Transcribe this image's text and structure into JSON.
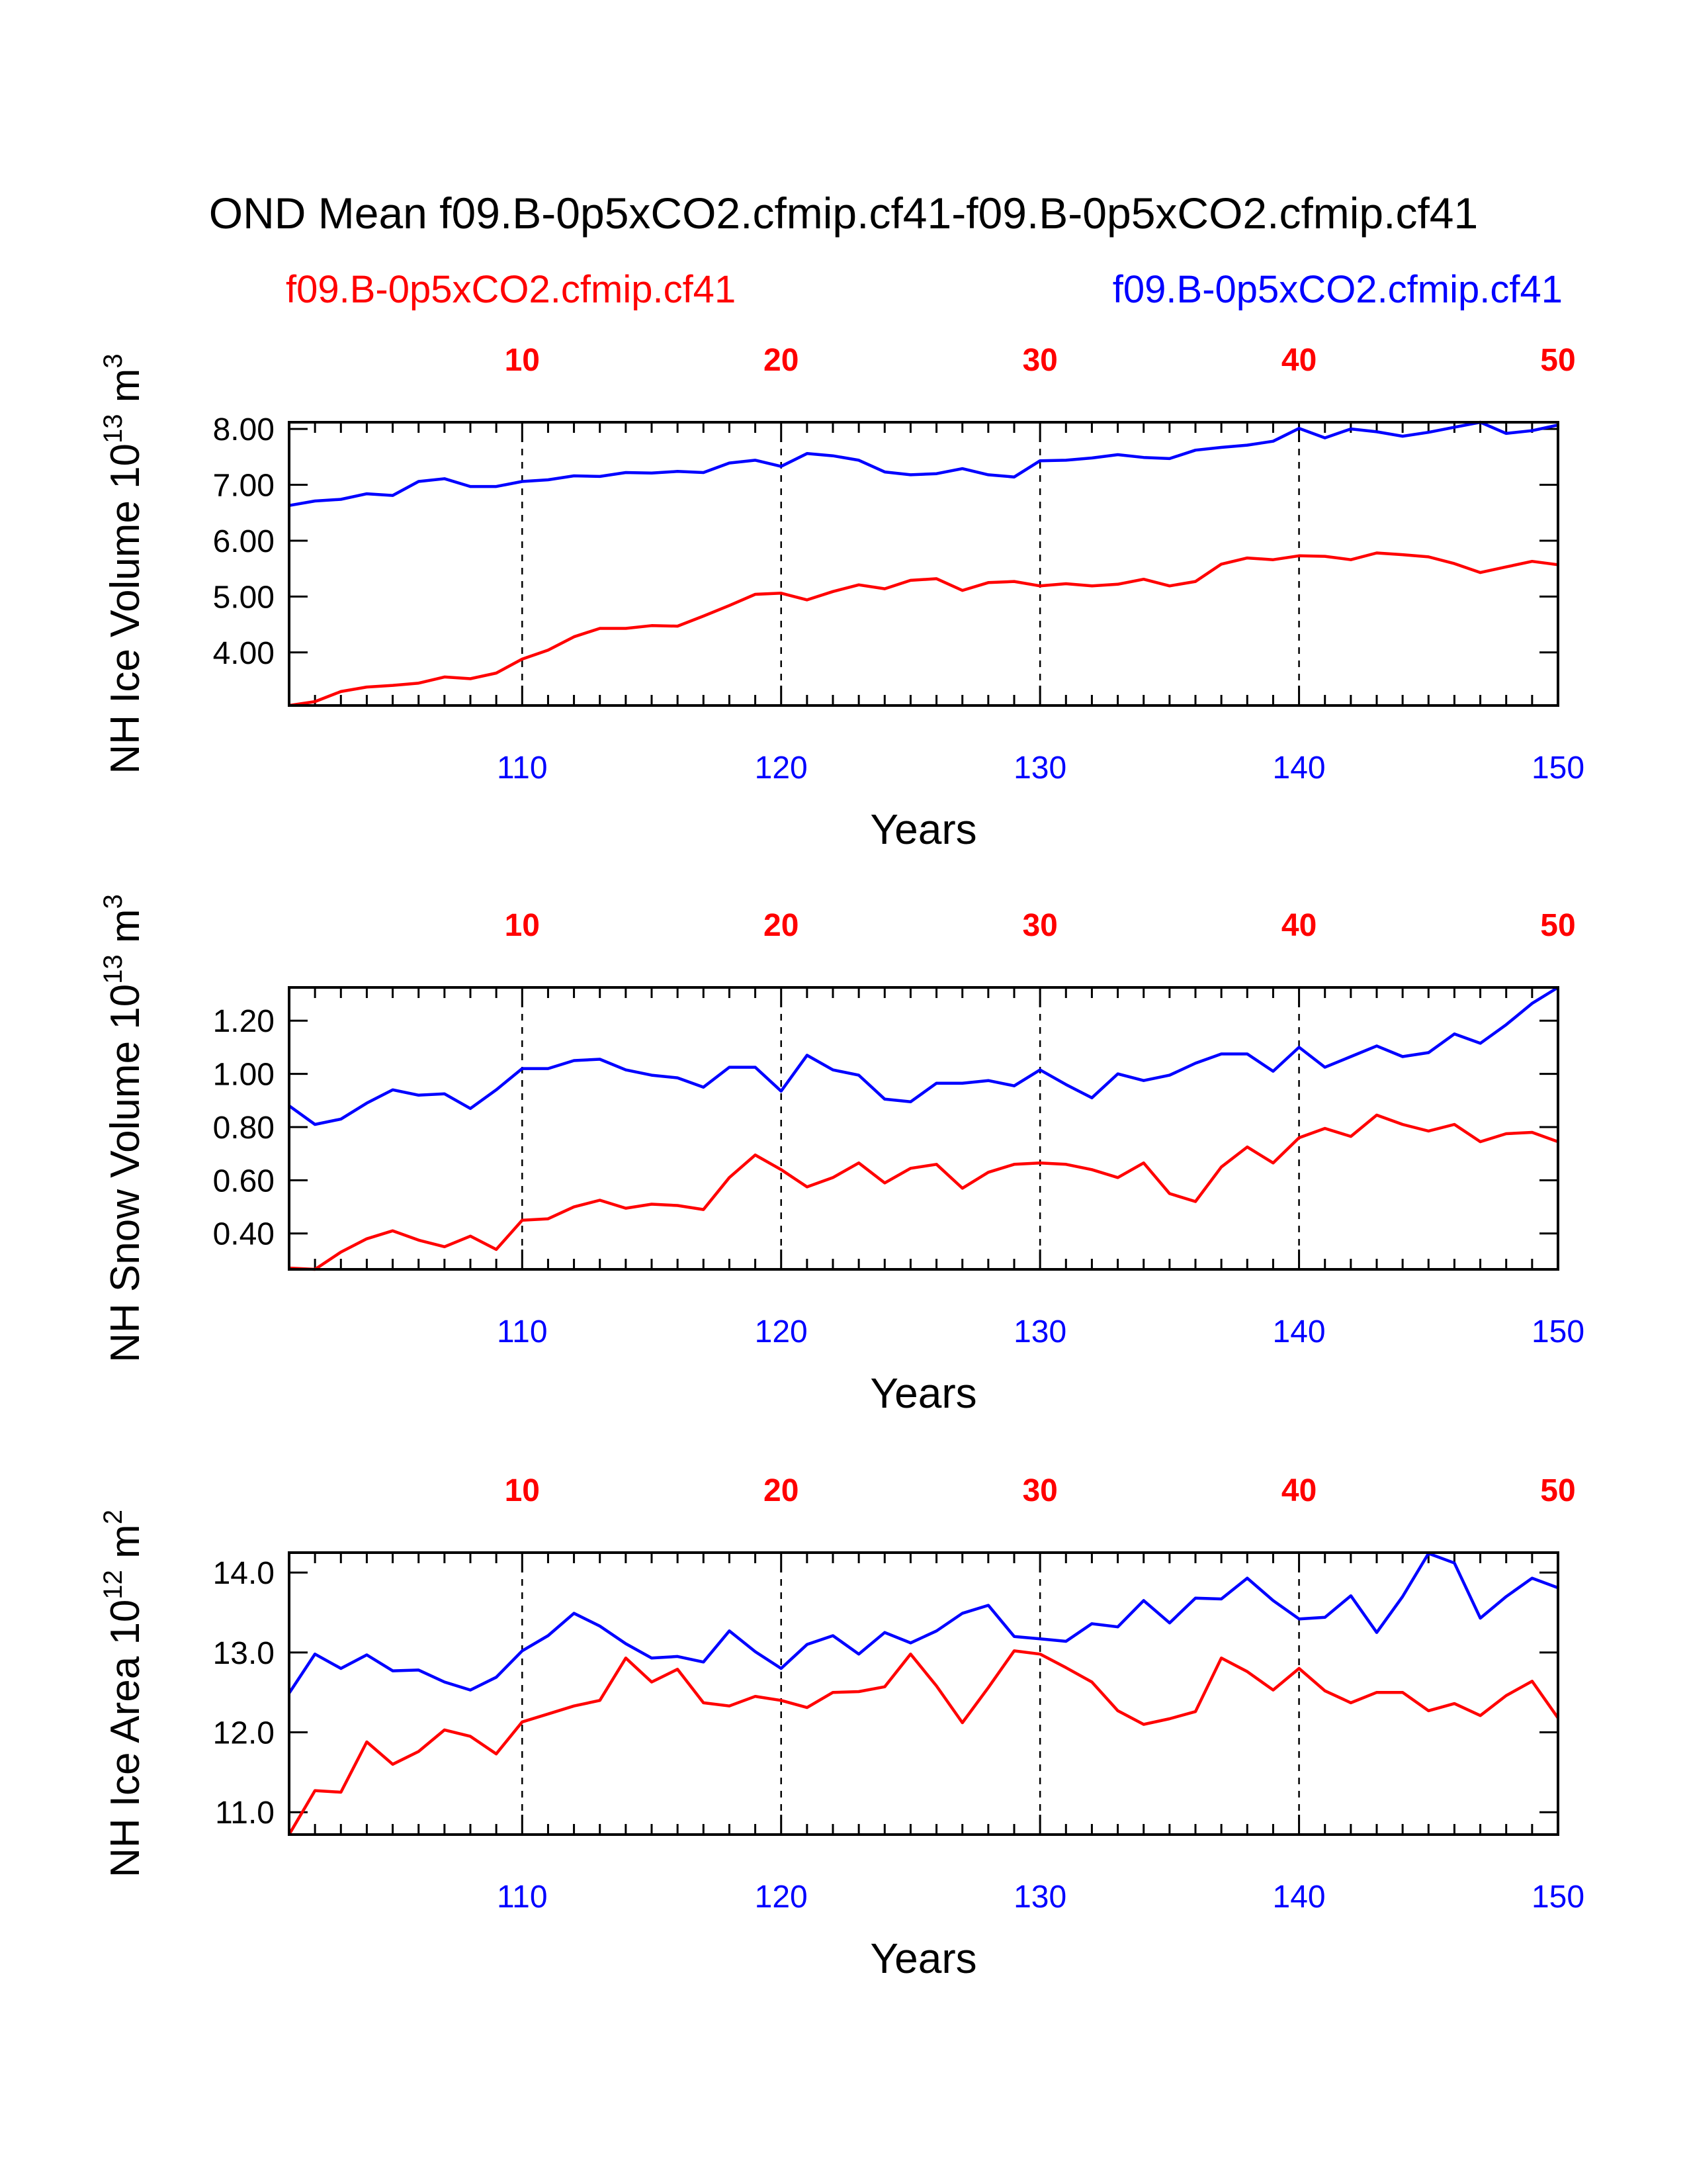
{
  "header": {
    "title": "OND Mean f09.B-0p5xCO2.cfmip.cf41-f09.B-0p5xCO2.cfmip.cf41",
    "case_left": "f09.B-0p5xCO2.cfmip.cf41",
    "case_right": "f09.B-0p5xCO2.cfmip.cf41"
  },
  "colors": {
    "series_red": "#ff0000",
    "series_blue": "#0000ff",
    "axis": "#000000"
  },
  "chart_data": [
    {
      "type": "line",
      "ylabel": "NH Ice Volume 10",
      "ylabel_exponent": "13",
      "ylabel_unit": "m",
      "ylabel_unit_exponent": "3",
      "xlabel": "Years",
      "grid": "vertical dashed lines at 10-year intervals",
      "top_axis": {
        "ticks": [
          10,
          20,
          30,
          40,
          50
        ],
        "tick_labels": [
          "10",
          "20",
          "30",
          "40",
          "50"
        ],
        "range": [
          1,
          50
        ]
      },
      "bottom_axis": {
        "ticks": [
          110,
          120,
          130,
          140,
          150
        ],
        "tick_labels": [
          "110",
          "120",
          "130",
          "140",
          "150"
        ],
        "range": [
          101,
          150
        ]
      },
      "ylim": [
        3.05,
        8.12
      ],
      "yticks": [
        4.0,
        5.0,
        6.0,
        7.0,
        8.0
      ],
      "ytick_labels": [
        "4.00",
        "5.00",
        "6.00",
        "7.00",
        "8.00"
      ],
      "series": [
        {
          "name": "f09.B-0p5xCO2.cfmip.cf41",
          "axis": "top",
          "x": [
            1,
            2,
            3,
            4,
            5,
            6,
            7,
            8,
            9,
            10,
            11,
            12,
            13,
            14,
            15,
            16,
            17,
            18,
            19,
            20,
            21,
            22,
            23,
            24,
            25,
            26,
            27,
            28,
            29,
            30,
            31,
            32,
            33,
            34,
            35,
            36,
            37,
            38,
            39,
            40,
            41,
            42,
            43,
            44,
            45,
            46,
            47,
            48,
            49,
            50
          ],
          "values": [
            3.05,
            3.12,
            3.3,
            3.38,
            3.41,
            3.45,
            3.56,
            3.53,
            3.63,
            3.88,
            4.04,
            4.28,
            4.43,
            4.43,
            4.48,
            4.47,
            4.65,
            4.84,
            5.04,
            5.06,
            4.94,
            5.09,
            5.21,
            5.14,
            5.29,
            5.32,
            5.11,
            5.25,
            5.27,
            5.19,
            5.23,
            5.19,
            5.22,
            5.31,
            5.19,
            5.27,
            5.58,
            5.69,
            5.66,
            5.73,
            5.72,
            5.66,
            5.78,
            5.75,
            5.71,
            5.59,
            5.43,
            5.53,
            5.63,
            5.57
          ]
        },
        {
          "name": "f09.B-0p5xCO2.cfmip.cf41",
          "axis": "bottom",
          "x": [
            101,
            102,
            103,
            104,
            105,
            106,
            107,
            108,
            109,
            110,
            111,
            112,
            113,
            114,
            115,
            116,
            117,
            118,
            119,
            120,
            121,
            122,
            123,
            124,
            125,
            126,
            127,
            128,
            129,
            130,
            131,
            132,
            133,
            134,
            135,
            136,
            137,
            138,
            139,
            140,
            141,
            142,
            143,
            144,
            145,
            146,
            147,
            148,
            149,
            150
          ],
          "values": [
            6.63,
            6.71,
            6.74,
            6.84,
            6.81,
            7.06,
            7.11,
            6.97,
            6.97,
            7.06,
            7.09,
            7.16,
            7.15,
            7.22,
            7.21,
            7.24,
            7.22,
            7.39,
            7.44,
            7.33,
            7.56,
            7.52,
            7.44,
            7.23,
            7.18,
            7.2,
            7.29,
            7.18,
            7.14,
            7.43,
            7.44,
            7.48,
            7.54,
            7.49,
            7.47,
            7.62,
            7.67,
            7.71,
            7.78,
            8.01,
            7.84,
            8.0,
            7.95,
            7.87,
            7.94,
            8.03,
            8.12,
            7.92,
            7.97,
            8.07
          ]
        }
      ]
    },
    {
      "type": "line",
      "ylabel": "NH Snow Volume 10",
      "ylabel_exponent": "13",
      "ylabel_unit": "m",
      "ylabel_unit_exponent": "3",
      "xlabel": "Years",
      "grid": "vertical dashed lines at 10-year intervals",
      "top_axis": {
        "ticks": [
          10,
          20,
          30,
          40,
          50
        ],
        "tick_labels": [
          "10",
          "20",
          "30",
          "40",
          "50"
        ],
        "range": [
          1,
          50
        ]
      },
      "bottom_axis": {
        "ticks": [
          110,
          120,
          130,
          140,
          150
        ],
        "tick_labels": [
          "110",
          "120",
          "130",
          "140",
          "150"
        ],
        "range": [
          101,
          150
        ]
      },
      "ylim": [
        0.265,
        1.325
      ],
      "yticks": [
        0.4,
        0.6,
        0.8,
        1.0,
        1.2
      ],
      "ytick_labels": [
        "0.40",
        "0.60",
        "0.80",
        "1.00",
        "1.20"
      ],
      "series": [
        {
          "name": "f09.B-0p5xCO2.cfmip.cf41",
          "axis": "top",
          "x": [
            1,
            2,
            3,
            4,
            5,
            6,
            7,
            8,
            9,
            10,
            11,
            12,
            13,
            14,
            15,
            16,
            17,
            18,
            19,
            20,
            21,
            22,
            23,
            24,
            25,
            26,
            27,
            28,
            29,
            30,
            31,
            32,
            33,
            34,
            35,
            36,
            37,
            38,
            39,
            40,
            41,
            42,
            43,
            44,
            45,
            46,
            47,
            48,
            49,
            50
          ],
          "values": [
            0.27,
            0.265,
            0.33,
            0.38,
            0.41,
            0.375,
            0.35,
            0.39,
            0.34,
            0.45,
            0.455,
            0.5,
            0.525,
            0.495,
            0.51,
            0.505,
            0.49,
            0.61,
            0.695,
            0.64,
            0.575,
            0.61,
            0.665,
            0.59,
            0.645,
            0.66,
            0.57,
            0.63,
            0.66,
            0.665,
            0.66,
            0.64,
            0.61,
            0.665,
            0.55,
            0.52,
            0.65,
            0.725,
            0.665,
            0.76,
            0.795,
            0.765,
            0.845,
            0.81,
            0.785,
            0.81,
            0.745,
            0.775,
            0.78,
            0.745
          ]
        },
        {
          "name": "f09.B-0p5xCO2.cfmip.cf41",
          "axis": "bottom",
          "x": [
            101,
            102,
            103,
            104,
            105,
            106,
            107,
            108,
            109,
            110,
            111,
            112,
            113,
            114,
            115,
            116,
            117,
            118,
            119,
            120,
            121,
            122,
            123,
            124,
            125,
            126,
            127,
            128,
            129,
            130,
            131,
            132,
            133,
            134,
            135,
            136,
            137,
            138,
            139,
            140,
            141,
            142,
            143,
            144,
            145,
            146,
            147,
            148,
            149,
            150
          ],
          "values": [
            0.88,
            0.81,
            0.83,
            0.89,
            0.94,
            0.92,
            0.925,
            0.87,
            0.94,
            1.02,
            1.02,
            1.05,
            1.055,
            1.015,
            0.995,
            0.985,
            0.95,
            1.025,
            1.025,
            0.935,
            1.07,
            1.015,
            0.995,
            0.905,
            0.895,
            0.965,
            0.965,
            0.975,
            0.955,
            1.015,
            0.96,
            0.91,
            1.0,
            0.975,
            0.995,
            1.04,
            1.075,
            1.075,
            1.01,
            1.1,
            1.025,
            1.065,
            1.105,
            1.065,
            1.08,
            1.15,
            1.115,
            1.185,
            1.265,
            1.325
          ]
        }
      ]
    },
    {
      "type": "line",
      "ylabel": "NH Ice Area 10",
      "ylabel_exponent": "12",
      "ylabel_unit": "m",
      "ylabel_unit_exponent": "2",
      "xlabel": "Years",
      "grid": "vertical dashed lines at 10-year intervals",
      "top_axis": {
        "ticks": [
          10,
          20,
          30,
          40,
          50
        ],
        "tick_labels": [
          "10",
          "20",
          "30",
          "40",
          "50"
        ],
        "range": [
          1,
          50
        ]
      },
      "bottom_axis": {
        "ticks": [
          110,
          120,
          130,
          140,
          150
        ],
        "tick_labels": [
          "110",
          "120",
          "130",
          "140",
          "150"
        ],
        "range": [
          101,
          150
        ]
      },
      "ylim": [
        10.72,
        14.25
      ],
      "yticks": [
        11.0,
        12.0,
        13.0,
        14.0
      ],
      "ytick_labels": [
        "11.0",
        "12.0",
        "13.0",
        "14.0"
      ],
      "series": [
        {
          "name": "f09.B-0p5xCO2.cfmip.cf41",
          "axis": "top",
          "x": [
            1,
            2,
            3,
            4,
            5,
            6,
            7,
            8,
            9,
            10,
            11,
            12,
            13,
            14,
            15,
            16,
            17,
            18,
            19,
            20,
            21,
            22,
            23,
            24,
            25,
            26,
            27,
            28,
            29,
            30,
            31,
            32,
            33,
            34,
            35,
            36,
            37,
            38,
            39,
            40,
            41,
            42,
            43,
            44,
            45,
            46,
            47,
            48,
            49,
            50
          ],
          "values": [
            10.72,
            11.27,
            11.25,
            11.88,
            11.6,
            11.76,
            12.03,
            11.95,
            11.73,
            12.13,
            12.23,
            12.33,
            12.4,
            12.93,
            12.63,
            12.79,
            12.37,
            12.33,
            12.45,
            12.4,
            12.31,
            12.5,
            12.51,
            12.57,
            12.98,
            12.58,
            12.12,
            12.56,
            13.02,
            12.98,
            12.81,
            12.63,
            12.27,
            12.1,
            12.17,
            12.26,
            12.93,
            12.76,
            12.53,
            12.8,
            12.52,
            12.37,
            12.5,
            12.5,
            12.27,
            12.36,
            12.21,
            12.46,
            12.64,
            12.18
          ]
        },
        {
          "name": "f09.B-0p5xCO2.cfmip.cf41",
          "axis": "bottom",
          "x": [
            101,
            102,
            103,
            104,
            105,
            106,
            107,
            108,
            109,
            110,
            111,
            112,
            113,
            114,
            115,
            116,
            117,
            118,
            119,
            120,
            121,
            122,
            123,
            124,
            125,
            126,
            127,
            128,
            129,
            130,
            131,
            132,
            133,
            134,
            135,
            136,
            137,
            138,
            139,
            140,
            141,
            142,
            143,
            144,
            145,
            146,
            147,
            148,
            149,
            150
          ],
          "values": [
            12.49,
            12.98,
            12.8,
            12.97,
            12.77,
            12.78,
            12.63,
            12.53,
            12.69,
            13.02,
            13.21,
            13.49,
            13.33,
            13.11,
            12.93,
            12.95,
            12.88,
            13.27,
            13.01,
            12.8,
            13.1,
            13.21,
            12.98,
            13.25,
            13.12,
            13.27,
            13.49,
            13.59,
            13.2,
            13.17,
            13.14,
            13.36,
            13.32,
            13.65,
            13.37,
            13.68,
            13.67,
            13.93,
            13.65,
            13.42,
            13.44,
            13.71,
            13.25,
            13.7,
            14.24,
            14.12,
            13.43,
            13.7,
            13.93,
            13.81
          ]
        }
      ]
    }
  ]
}
